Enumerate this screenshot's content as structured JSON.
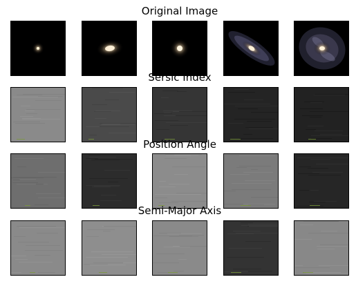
{
  "chart_data": [
    {
      "type": "image",
      "title": "Original Image",
      "panels": [
        {
          "kind": "galaxy",
          "style": "point"
        },
        {
          "kind": "galaxy",
          "style": "elliptical"
        },
        {
          "kind": "galaxy",
          "style": "compact"
        },
        {
          "kind": "galaxy",
          "style": "edge-on-spiral"
        },
        {
          "kind": "galaxy",
          "style": "face-on-spiral"
        }
      ]
    },
    {
      "type": "image",
      "title": "Sersic Index",
      "panels": [
        {
          "kind": "map",
          "gray": "#8a8a8a"
        },
        {
          "kind": "map",
          "gray": "#4a4a4a"
        },
        {
          "kind": "map",
          "gray": "#353535"
        },
        {
          "kind": "map",
          "gray": "#242424"
        },
        {
          "kind": "map",
          "gray": "#222222"
        }
      ]
    },
    {
      "type": "image",
      "title": "Position Angle",
      "panels": [
        {
          "kind": "map",
          "gray": "#6e6e6e"
        },
        {
          "kind": "map",
          "gray": "#2c2c2c"
        },
        {
          "kind": "map",
          "gray": "#8c8c8c"
        },
        {
          "kind": "map",
          "gray": "#7b7b7b"
        },
        {
          "kind": "map",
          "gray": "#262626"
        }
      ]
    },
    {
      "type": "image",
      "title": "Semi-Major Axis",
      "panels": [
        {
          "kind": "map",
          "gray": "#8a8a8a"
        },
        {
          "kind": "map",
          "gray": "#8e8e8e"
        },
        {
          "kind": "map",
          "gray": "#8a8a8a"
        },
        {
          "kind": "map",
          "gray": "#333333"
        },
        {
          "kind": "map",
          "gray": "#888888"
        }
      ]
    }
  ]
}
